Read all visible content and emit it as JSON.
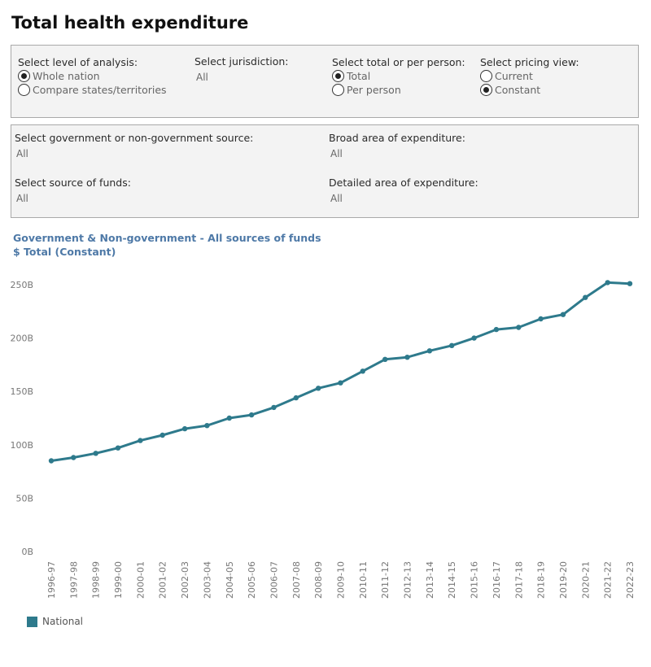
{
  "page": {
    "title": "Total health expenditure"
  },
  "filters": {
    "level": {
      "label": "Select level of analysis:",
      "options": [
        "Whole nation",
        "Compare states/territories"
      ],
      "selected": 0
    },
    "jurisdiction": {
      "label": "Select jurisdiction:",
      "value": "All"
    },
    "total_per_person": {
      "label": "Select total or per person:",
      "options": [
        "Total",
        "Per person"
      ],
      "selected": 0
    },
    "pricing": {
      "label": "Select pricing view:",
      "options": [
        "Current",
        "Constant"
      ],
      "selected": 1
    },
    "gov_source": {
      "label": "Select government or non-government source:",
      "value": "All"
    },
    "broad_area": {
      "label": "Broad area of expenditure:",
      "value": "All"
    },
    "source_funds": {
      "label": "Select source of funds:",
      "value": "All"
    },
    "detailed_area": {
      "label": "Detailed area of expenditure:",
      "value": "All"
    }
  },
  "colors": {
    "series": "#2e7a8c",
    "title": "#4e79a7"
  },
  "chart_data": {
    "type": "line",
    "title": "Government & Non-government - All sources of funds",
    "subtitle": "$ Total (Constant)",
    "xlabel": "",
    "ylabel": "",
    "ylim": [
      0,
      260
    ],
    "yticks": [
      0,
      50,
      100,
      150,
      200,
      250
    ],
    "ytick_labels": [
      "0B",
      "50B",
      "100B",
      "150B",
      "200B",
      "250B"
    ],
    "grid": false,
    "legend": "bottom-left",
    "categories": [
      "1996-97",
      "1997-98",
      "1998-99",
      "1999-00",
      "2000-01",
      "2001-02",
      "2002-03",
      "2003-04",
      "2004-05",
      "2005-06",
      "2006-07",
      "2007-08",
      "2008-09",
      "2009-10",
      "2010-11",
      "2011-12",
      "2012-13",
      "2013-14",
      "2014-15",
      "2015-16",
      "2016-17",
      "2017-18",
      "2018-19",
      "2019-20",
      "2020-21",
      "2021-22",
      "2022-23"
    ],
    "series": [
      {
        "name": "National",
        "values": [
          85,
          88,
          92,
          97,
          104,
          109,
          115,
          118,
          125,
          128,
          135,
          144,
          153,
          158,
          169,
          180,
          182,
          188,
          193,
          200,
          208,
          210,
          218,
          222,
          238,
          252,
          251
        ]
      }
    ]
  }
}
